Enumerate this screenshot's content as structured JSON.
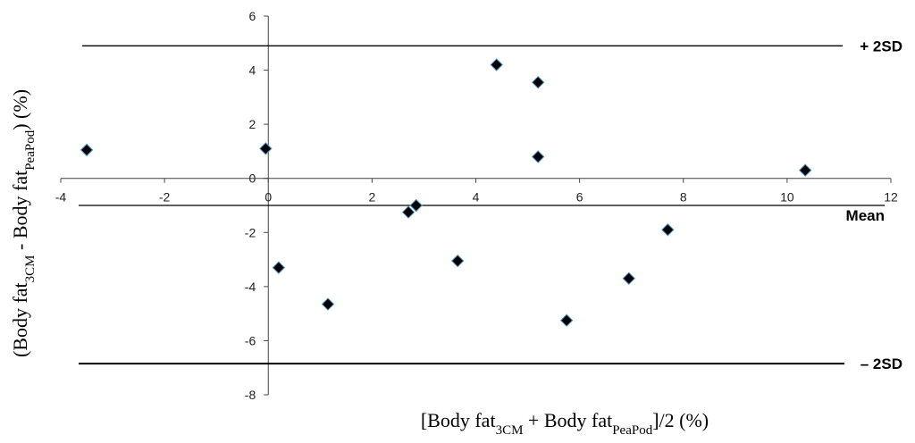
{
  "chart_data": {
    "type": "scatter",
    "title": "",
    "xlabel": {
      "parts": [
        {
          "text": "[Body fat",
          "sub": false
        },
        {
          "text": "3CM",
          "sub": true
        },
        {
          "text": " + Body fat",
          "sub": false
        },
        {
          "text": "PeaPod",
          "sub": true
        },
        {
          "text": "]/2 (%)",
          "sub": false
        }
      ]
    },
    "ylabel": {
      "parts": [
        {
          "text": "(Body fat",
          "sub": false
        },
        {
          "text": "3CM",
          "sub": true
        },
        {
          "text": "  - Body fat",
          "sub": false
        },
        {
          "text": "PeaPod",
          "sub": true
        },
        {
          "text": ") (%)",
          "sub": false
        }
      ]
    },
    "xlim": [
      -4,
      12
    ],
    "ylim": [
      -8,
      6
    ],
    "x_ticks": [
      -4,
      -2,
      0,
      2,
      4,
      6,
      8,
      10,
      12
    ],
    "y_ticks": [
      -8,
      -6,
      -4,
      -2,
      0,
      2,
      4,
      6
    ],
    "points": [
      {
        "x": -3.5,
        "y": 1.05
      },
      {
        "x": -0.05,
        "y": 1.1
      },
      {
        "x": 0.2,
        "y": -3.3
      },
      {
        "x": 1.15,
        "y": -4.65
      },
      {
        "x": 2.7,
        "y": -1.25
      },
      {
        "x": 2.85,
        "y": -1.0
      },
      {
        "x": 3.65,
        "y": -3.05
      },
      {
        "x": 4.4,
        "y": 4.2
      },
      {
        "x": 5.2,
        "y": 3.55
      },
      {
        "x": 5.2,
        "y": 0.8
      },
      {
        "x": 5.75,
        "y": -5.25
      },
      {
        "x": 6.95,
        "y": -3.7
      },
      {
        "x": 7.7,
        "y": -1.9
      },
      {
        "x": 10.35,
        "y": 0.3
      }
    ],
    "reference_lines": [
      {
        "label": "+ 2SD",
        "y": 4.9
      },
      {
        "label": "Mean",
        "y": -1.0
      },
      {
        "label": "– 2SD",
        "y": -6.85
      }
    ],
    "grid": false,
    "marker": {
      "shape": "diamond",
      "color": "#000000",
      "edge": "#4a90c8"
    }
  }
}
